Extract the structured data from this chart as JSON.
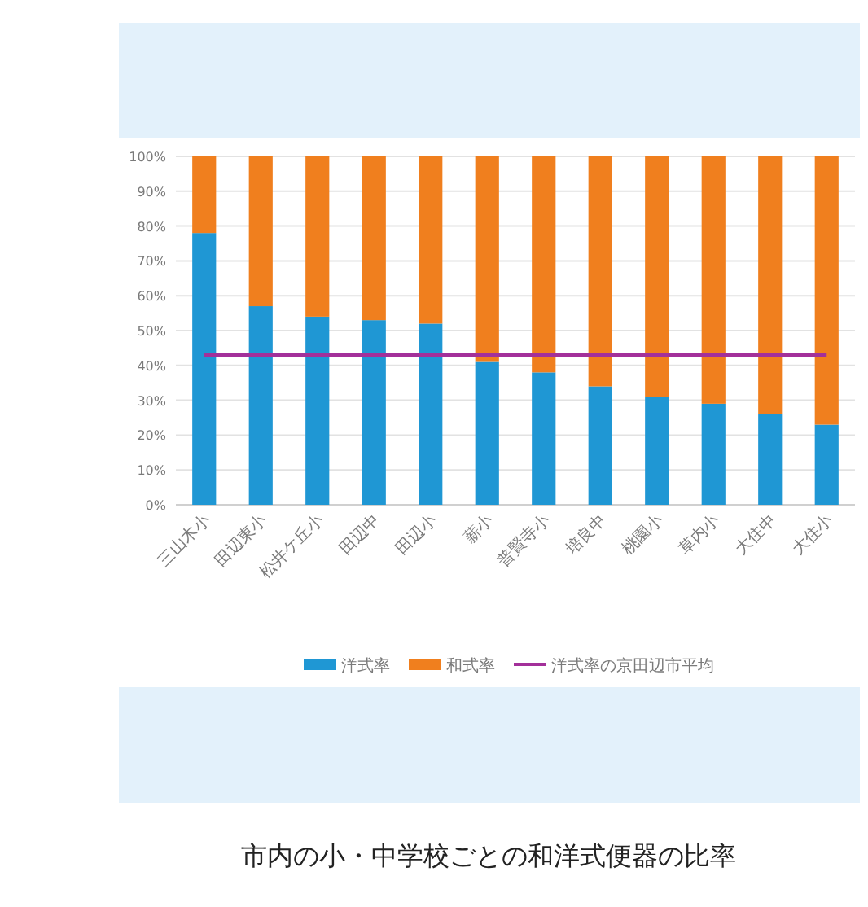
{
  "chart_data": {
    "type": "bar",
    "stacked": true,
    "title": "市内の小・中学校ごとの和洋式便器の比率",
    "categories": [
      "三山木小",
      "田辺東小",
      "松井ケ丘小",
      "田辺中",
      "田辺小",
      "薪小",
      "普賢寺小",
      "培良中",
      "桃園小",
      "草内小",
      "大住中",
      "大住小"
    ],
    "series": [
      {
        "name": "洋式率",
        "color": "#1f97d4",
        "values": [
          78,
          57,
          54,
          53,
          52,
          41,
          38,
          34,
          31,
          29,
          26,
          23
        ]
      },
      {
        "name": "和式率",
        "color": "#f07f1e",
        "values": [
          22,
          43,
          46,
          47,
          48,
          59,
          62,
          66,
          69,
          71,
          74,
          77
        ]
      },
      {
        "name": "洋式率の京田辺市平均",
        "type": "line",
        "color": "#a3309a",
        "values": [
          43,
          43,
          43,
          43,
          43,
          43,
          43,
          43,
          43,
          43,
          43,
          43
        ]
      }
    ],
    "ylim": [
      0,
      100
    ],
    "yticks": [
      {
        "value": 0,
        "label": "0%"
      },
      {
        "value": 10,
        "label": "10%"
      },
      {
        "value": 20,
        "label": "20%"
      },
      {
        "value": 30,
        "label": "30%"
      },
      {
        "value": 40,
        "label": "40%"
      },
      {
        "value": 50,
        "label": "50%"
      },
      {
        "value": 60,
        "label": "60%"
      },
      {
        "value": 70,
        "label": "70%"
      },
      {
        "value": 80,
        "label": "80%"
      },
      {
        "value": 90,
        "label": "90%"
      },
      {
        "value": 100,
        "label": "100%"
      }
    ],
    "grid": "y",
    "legend": "bottom"
  }
}
